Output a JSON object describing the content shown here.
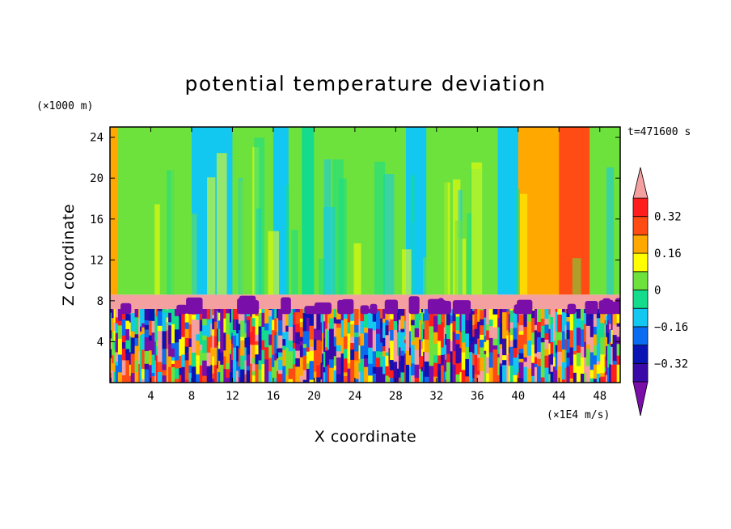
{
  "chart_data": {
    "type": "heatmap",
    "title": "potential temperature deviation",
    "xlabel": "X coordinate",
    "ylabel": "Z coordinate",
    "x_unit": "(×1E4 m/s)",
    "y_unit": "(×1000 m)",
    "time_label": "t=471600 s",
    "xlim": [
      0,
      50
    ],
    "ylim": [
      0,
      25
    ],
    "x_ticks": [
      4,
      8,
      12,
      16,
      20,
      24,
      28,
      32,
      36,
      40,
      44,
      48
    ],
    "y_ticks": [
      4,
      8,
      12,
      16,
      20,
      24
    ],
    "colorbar": {
      "levels": [
        -0.4,
        -0.32,
        -0.24,
        -0.16,
        -0.08,
        0,
        0.08,
        0.16,
        0.24,
        0.32,
        0.4
      ],
      "tick_labels": [
        "0.32",
        "0.16",
        "0",
        "−0.16",
        "−0.32"
      ],
      "tick_values": [
        0.32,
        0.16,
        0,
        -0.16,
        -0.32
      ],
      "colors": [
        "#7a0ea8",
        "#3a0aa8",
        "#0a14b4",
        "#0a6cf0",
        "#12c8f0",
        "#14dc8c",
        "#6ee23c",
        "#ffff00",
        "#ffa800",
        "#ff4c14",
        "#ff1e1e",
        "#f4a0a0"
      ]
    },
    "features": {
      "stable_layer_z": [
        7.2,
        8.6
      ],
      "stable_layer_value": 0.4,
      "convective_layer_z": [
        0,
        7.2
      ],
      "upper_field": [
        {
          "x": [
            0,
            0.8
          ],
          "value": 0.2
        },
        {
          "x": [
            0.8,
            8
          ],
          "value": 0.04
        },
        {
          "x": [
            8,
            12
          ],
          "value": -0.1
        },
        {
          "x": [
            12,
            16
          ],
          "value": 0.04
        },
        {
          "x": [
            16,
            17.5
          ],
          "value": -0.1
        },
        {
          "x": [
            17.5,
            18.8
          ],
          "value": 0.04
        },
        {
          "x": [
            18.8,
            20
          ],
          "value": -0.04
        },
        {
          "x": [
            20,
            29
          ],
          "value": 0.04
        },
        {
          "x": [
            29,
            31
          ],
          "value": -0.1
        },
        {
          "x": [
            31,
            38
          ],
          "value": 0.04
        },
        {
          "x": [
            38,
            40
          ],
          "value": -0.1
        },
        {
          "x": [
            40,
            44
          ],
          "value": 0.2
        },
        {
          "x": [
            44,
            47
          ],
          "value": 0.28
        },
        {
          "x": [
            47,
            50
          ],
          "value": 0.04
        }
      ]
    }
  }
}
